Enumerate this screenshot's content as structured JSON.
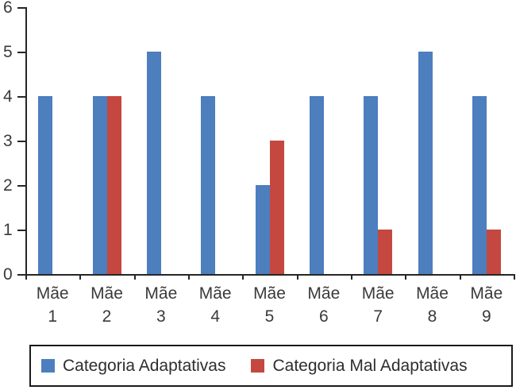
{
  "chart_data": {
    "type": "bar",
    "title": "",
    "xlabel": "",
    "ylabel": "",
    "categories": [
      "Mãe 1",
      "Mãe 2",
      "Mãe 3",
      "Mãe 4",
      "Mãe 5",
      "Mãe 6",
      "Mãe 7",
      "Mãe 8",
      "Mãe 9"
    ],
    "series": [
      {
        "name": "Categoria Adaptativas",
        "color": "#4D7EBE",
        "values": [
          4,
          4,
          5,
          4,
          2,
          4,
          4,
          5,
          4
        ]
      },
      {
        "name": "Categoria Mal Adaptativas",
        "color": "#C4483F",
        "values": [
          0,
          4,
          0,
          0,
          3,
          0,
          1,
          0,
          1
        ]
      }
    ],
    "ylim": [
      0,
      6
    ],
    "yticks": [
      0,
      1,
      2,
      3,
      4,
      5,
      6
    ],
    "grid": false,
    "legend_position": "bottom-box"
  }
}
